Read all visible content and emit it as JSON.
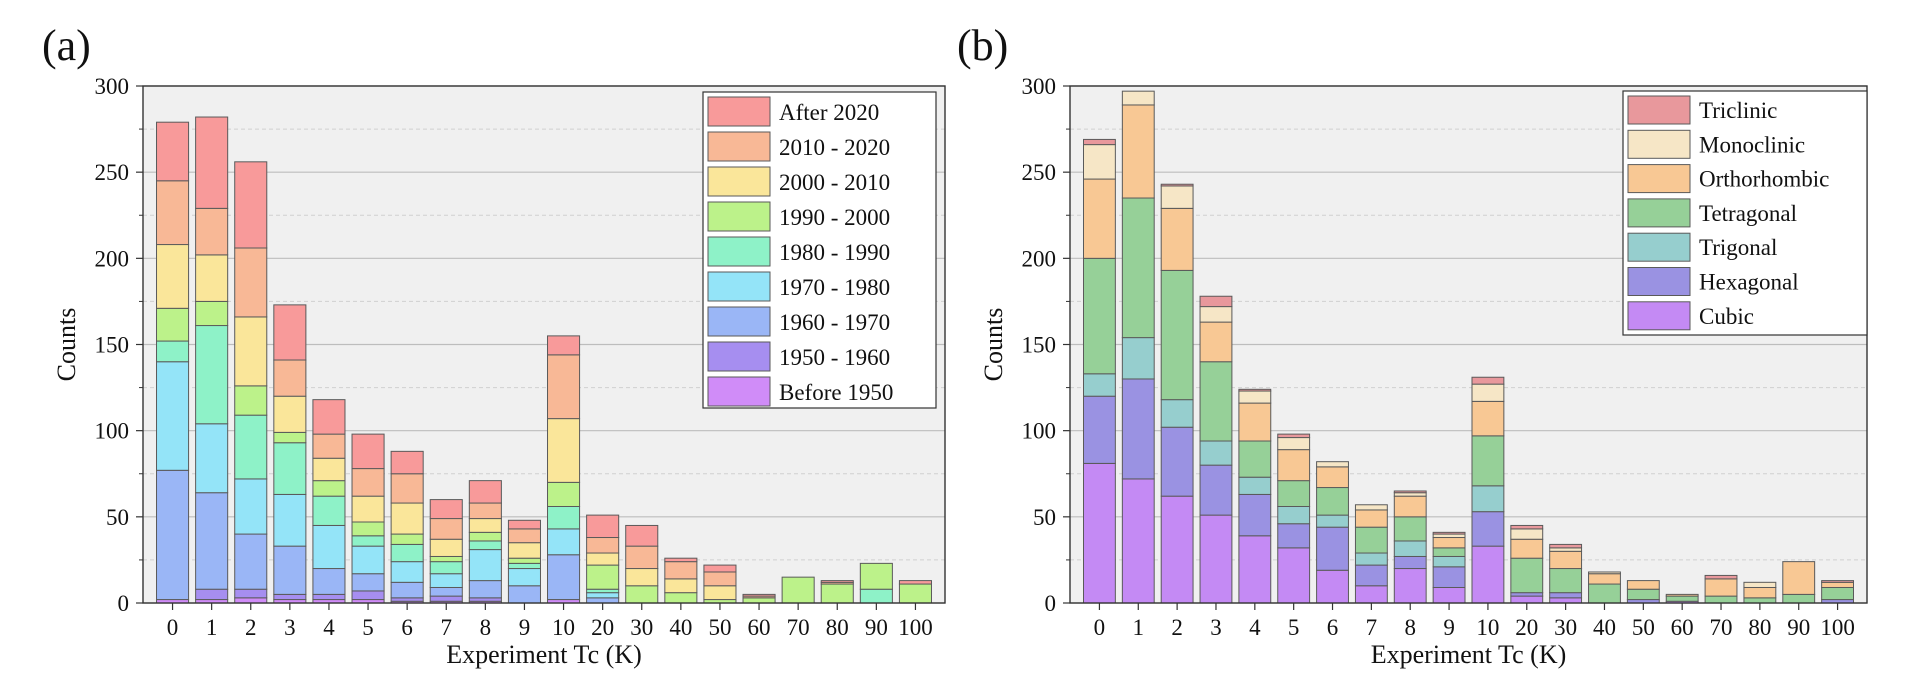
{
  "panels": [
    {
      "label": "(a)",
      "chart_data": {
        "type": "bar",
        "stacked": true,
        "title": "",
        "xlabel": "Experiment Tc (K)",
        "ylabel": "Counts",
        "ylim": [
          0,
          300
        ],
        "yticks": [
          0,
          50,
          100,
          150,
          200,
          250,
          300
        ],
        "grid": "horizontal",
        "legend_position": "top-right",
        "categories": [
          "0",
          "1",
          "2",
          "3",
          "4",
          "5",
          "6",
          "7",
          "8",
          "9",
          "10",
          "20",
          "30",
          "40",
          "50",
          "60",
          "70",
          "80",
          "90",
          "100"
        ],
        "series": [
          {
            "name": "Before 1950",
            "color": "#d08cf8",
            "values": [
              2,
              2,
              3,
              2,
              2,
              2,
              1,
              1,
              1,
              0,
              2,
              0,
              0,
              0,
              0,
              0,
              0,
              0,
              0,
              0
            ]
          },
          {
            "name": "1950 - 1960",
            "color": "#a68ef0",
            "values": [
              0,
              6,
              5,
              3,
              3,
              5,
              2,
              3,
              2,
              0,
              0,
              0,
              0,
              0,
              0,
              0,
              0,
              0,
              0,
              0
            ]
          },
          {
            "name": "1960 - 1970",
            "color": "#9ab6f6",
            "values": [
              75,
              56,
              32,
              28,
              15,
              10,
              9,
              5,
              10,
              10,
              26,
              3,
              0,
              0,
              0,
              0,
              0,
              0,
              0,
              0
            ]
          },
          {
            "name": "1970 - 1980",
            "color": "#94e4f8",
            "values": [
              63,
              40,
              32,
              30,
              25,
              16,
              12,
              8,
              18,
              10,
              15,
              3,
              0,
              0,
              0,
              0,
              0,
              0,
              0,
              0
            ]
          },
          {
            "name": "1980 - 1990",
            "color": "#8ef2c8",
            "values": [
              12,
              57,
              37,
              30,
              17,
              6,
              10,
              7,
              5,
              3,
              13,
              2,
              0,
              0,
              0,
              0,
              0,
              0,
              8,
              0
            ]
          },
          {
            "name": "1990 - 2000",
            "color": "#bcf28a",
            "values": [
              19,
              14,
              17,
              6,
              9,
              8,
              6,
              3,
              5,
              3,
              14,
              14,
              10,
              6,
              2,
              3,
              15,
              11,
              15,
              11
            ]
          },
          {
            "name": "2000 - 2010",
            "color": "#fae69a",
            "values": [
              37,
              27,
              40,
              21,
              13,
              15,
              18,
              10,
              8,
              9,
              37,
              7,
              10,
              8,
              8,
              0,
              0,
              0,
              0,
              0
            ]
          },
          {
            "name": "2010 - 2020",
            "color": "#f8b896",
            "values": [
              37,
              27,
              40,
              21,
              14,
              16,
              17,
              12,
              9,
              8,
              37,
              9,
              13,
              10,
              8,
              1,
              0,
              1,
              0,
              0
            ]
          },
          {
            "name": "After 2020",
            "color": "#f89a9a",
            "values": [
              34,
              53,
              50,
              32,
              20,
              20,
              13,
              11,
              13,
              5,
              11,
              13,
              12,
              2,
              4,
              1,
              0,
              1,
              0,
              2
            ]
          }
        ]
      }
    },
    {
      "label": "(b)",
      "chart_data": {
        "type": "bar",
        "stacked": true,
        "title": "",
        "xlabel": "Experiment Tc (K)",
        "ylabel": "Counts",
        "ylim": [
          0,
          300
        ],
        "yticks": [
          0,
          50,
          100,
          150,
          200,
          250,
          300
        ],
        "grid": "horizontal",
        "legend_position": "top-right",
        "categories": [
          "0",
          "1",
          "2",
          "3",
          "4",
          "5",
          "6",
          "7",
          "8",
          "9",
          "10",
          "20",
          "30",
          "40",
          "50",
          "60",
          "70",
          "80",
          "90",
          "100"
        ],
        "series": [
          {
            "name": "Cubic",
            "color": "#c48af4",
            "values": [
              81,
              72,
              62,
              51,
              39,
              32,
              19,
              10,
              20,
              9,
              33,
              4,
              3,
              0,
              0,
              1,
              0,
              0,
              0,
              0
            ]
          },
          {
            "name": "Hexagonal",
            "color": "#9a92e2",
            "values": [
              39,
              58,
              40,
              29,
              24,
              14,
              25,
              12,
              7,
              12,
              20,
              2,
              3,
              0,
              2,
              0,
              0,
              0,
              0,
              2
            ]
          },
          {
            "name": "Trigonal",
            "color": "#96cece",
            "values": [
              13,
              24,
              16,
              14,
              10,
              10,
              7,
              7,
              9,
              6,
              15,
              0,
              0,
              0,
              0,
              0,
              0,
              0,
              0,
              0
            ]
          },
          {
            "name": "Tetragonal",
            "color": "#96d098",
            "values": [
              67,
              81,
              75,
              46,
              21,
              15,
              16,
              15,
              14,
              5,
              29,
              20,
              14,
              11,
              6,
              3,
              4,
              3,
              5,
              7
            ]
          },
          {
            "name": "Orthorhombic",
            "color": "#f8c894",
            "values": [
              46,
              54,
              36,
              23,
              22,
              18,
              12,
              10,
              12,
              6,
              20,
              11,
              10,
              6,
              5,
              1,
              10,
              6,
              19,
              3
            ]
          },
          {
            "name": "Monoclinic",
            "color": "#f6e6c6",
            "values": [
              20,
              8,
              13,
              9,
              7,
              7,
              3,
              3,
              2,
              2,
              10,
              6,
              2,
              1,
              0,
              0,
              0,
              3,
              0,
              0
            ]
          },
          {
            "name": "Triclinic",
            "color": "#e8989c",
            "values": [
              3,
              0,
              1,
              6,
              1,
              2,
              0,
              0,
              1,
              1,
              4,
              2,
              2,
              0,
              0,
              0,
              2,
              0,
              0,
              1
            ]
          }
        ]
      }
    }
  ]
}
